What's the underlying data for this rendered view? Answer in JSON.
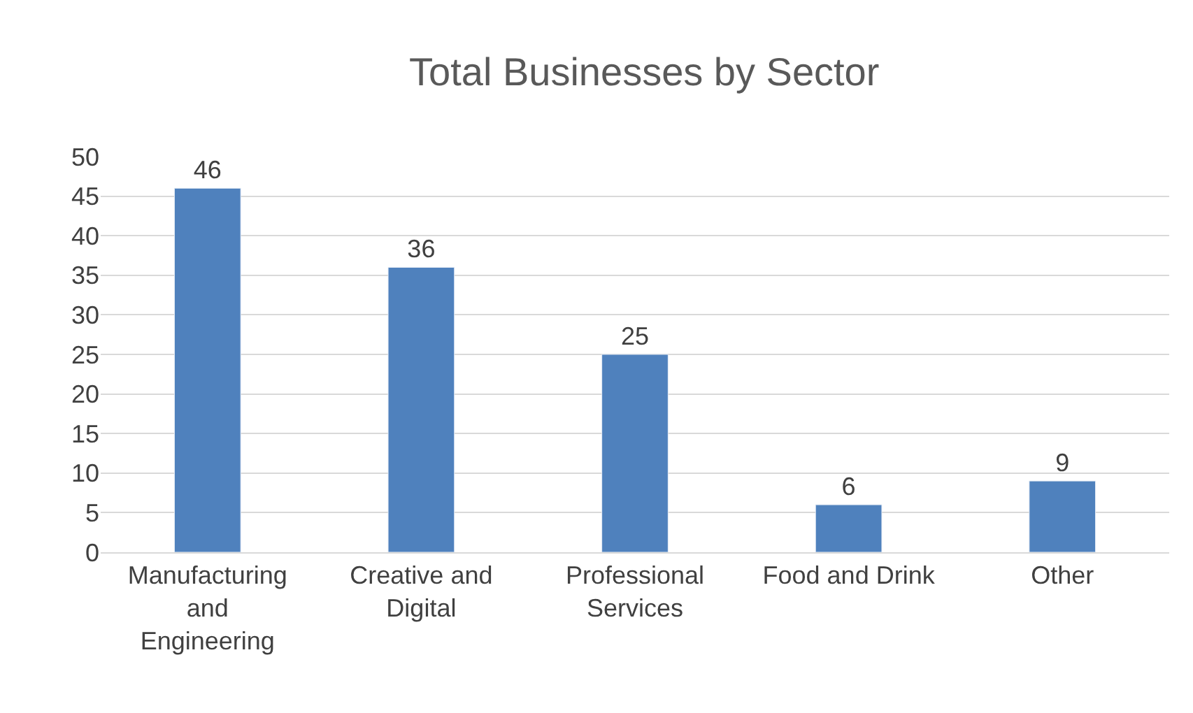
{
  "chart_data": {
    "type": "bar",
    "title": "Total Businesses by Sector",
    "categories": [
      "Manufacturing and Engineering",
      "Creative and Digital",
      "Professional Services",
      "Food and Drink",
      "Other"
    ],
    "values": [
      46,
      36,
      25,
      6,
      9
    ],
    "color": "#4f81bd",
    "ylim": [
      0,
      50
    ],
    "yticks": [
      0,
      5,
      10,
      15,
      20,
      25,
      30,
      35,
      40,
      45,
      50
    ],
    "grid": "y",
    "data_labels": true,
    "legend": false
  }
}
